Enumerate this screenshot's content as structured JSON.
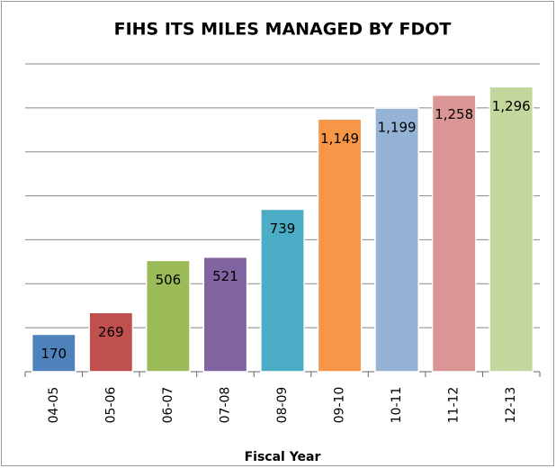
{
  "chart_data": {
    "type": "bar",
    "title": "FIHS ITS MILES MANAGED BY FDOT",
    "x_label": "Fiscal Year",
    "categories": [
      "04-05",
      "05-06",
      "06-07",
      "07-08",
      "08-09",
      "09-10",
      "10-11",
      "11-12",
      "12-13"
    ],
    "values": [
      170,
      269,
      506,
      521,
      739,
      1149,
      1199,
      1258,
      1296
    ],
    "value_labels": [
      "170",
      "269",
      "506",
      "521",
      "739",
      "1,149",
      "1,199",
      "1,258",
      "1,296"
    ],
    "colors": [
      "#4f81bd",
      "#c0504d",
      "#9bbb59",
      "#8064a2",
      "#4bacc6",
      "#f79646",
      "#95b3d7",
      "#d99694",
      "#c3d69b"
    ],
    "ylim": [
      0,
      1400
    ],
    "yticks": [
      0,
      200,
      400,
      600,
      800,
      1000,
      1200,
      1400
    ],
    "grid": true
  }
}
